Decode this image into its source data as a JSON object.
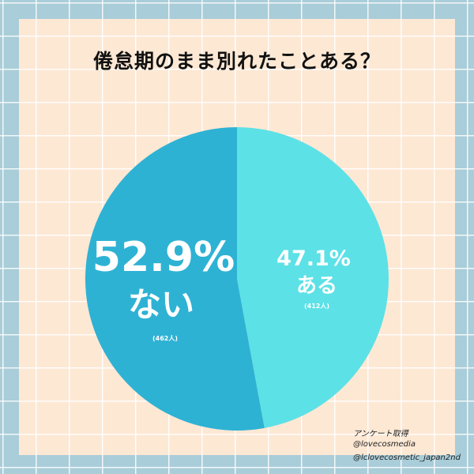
{
  "title": "倦怠期のまま別れたことある？",
  "chart_data": {
    "type": "pie",
    "title": "倦怠期のまま別れたことある？",
    "slices": [
      {
        "label": "ある",
        "percent_label": "47.1%",
        "value": 47.1,
        "count_label": "(412人)",
        "color": "#5ce1e6"
      },
      {
        "label": "ない",
        "percent_label": "52.9%",
        "value": 52.9,
        "count_label": "(462人)",
        "color": "#2eb2d4"
      }
    ]
  },
  "credits": {
    "line1": "アンケート取得",
    "line2": "@lovecosmedia",
    "line3": "@lclovecosmetic_japan2nd"
  },
  "colors": {
    "outer_background": "#a9cdd9",
    "panel_background": "#fde8d4",
    "label_text": "#ffffff"
  }
}
